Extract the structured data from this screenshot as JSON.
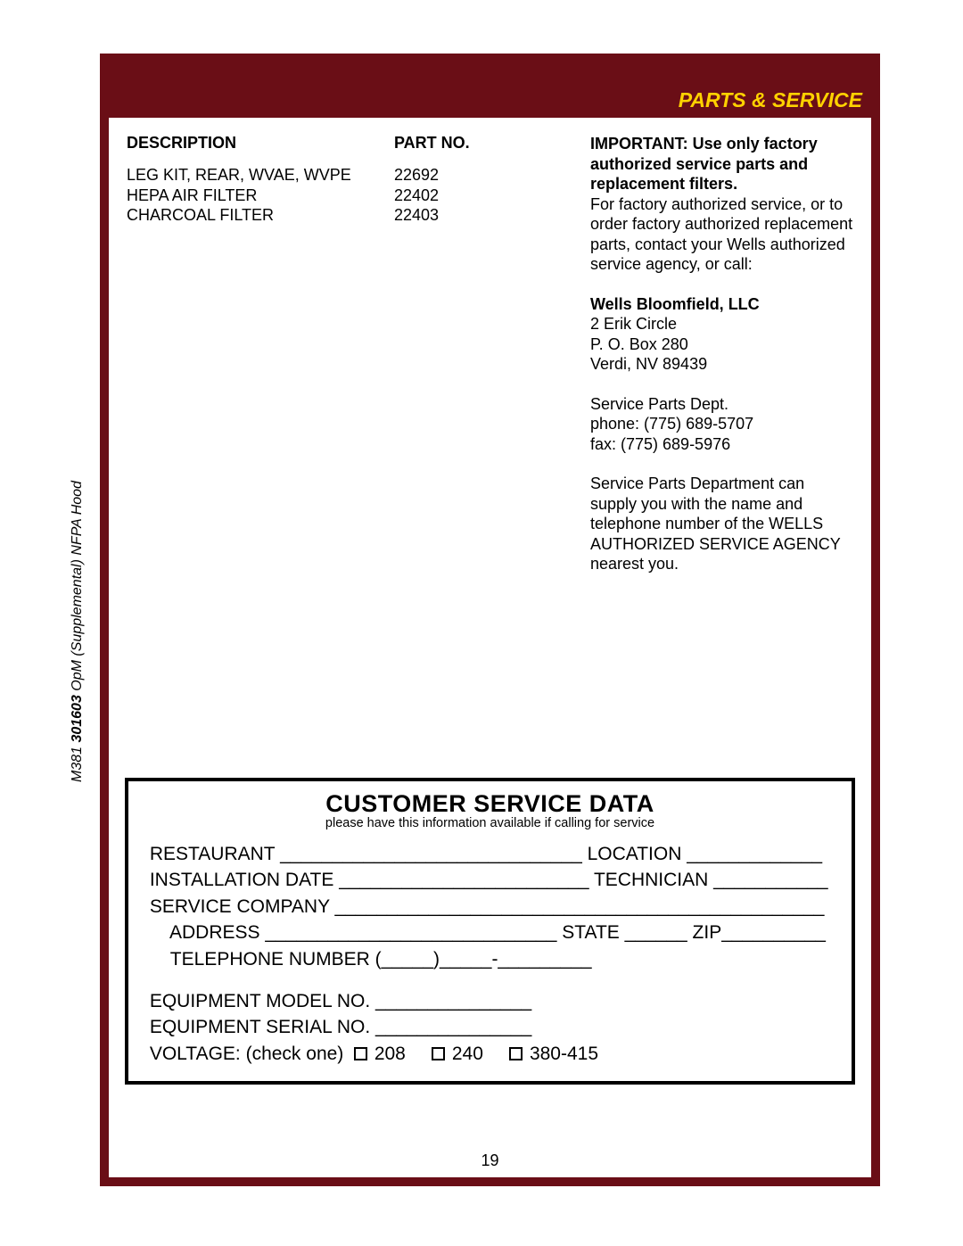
{
  "header": {
    "title": "PARTS & SERVICE"
  },
  "parts": {
    "headers": {
      "description": "DESCRIPTION",
      "partno": "PART NO."
    },
    "rows": [
      {
        "desc": "LEG KIT, REAR, WVAE, WVPE",
        "partno": "22692"
      },
      {
        "desc": "HEPA AIR FILTER",
        "partno": "22402"
      },
      {
        "desc": "CHARCOAL FILTER",
        "partno": "22403"
      }
    ]
  },
  "info": {
    "important": "IMPORTANT: Use only factory authorized service parts and replacement filters.",
    "para1": "For factory authorized service, or to order factory authorized replacement parts, contact your Wells authorized service agency, or call:",
    "company": "Wells Bloomfield, LLC",
    "addr1": "2 Erik Circle",
    "addr2": "P. O. Box 280",
    "addr3": "Verdi, NV  89439",
    "dept": "Service Parts Dept.",
    "phone": "phone:  (775) 689-5707",
    "fax": "fax:        (775) 689-5976",
    "para2": "Service Parts Department can supply you with the name and telephone number of the WELLS  AUTHORIZED SERVICE AGENCY  nearest you."
  },
  "csd": {
    "title": "CUSTOMER SERVICE DATA",
    "sub": "please have this information available if calling for service",
    "line1": " RESTAURANT _____________________________ LOCATION _____________",
    "line2": " INSTALLATION DATE ________________________ TECHNICIAN ___________",
    "line3": " SERVICE COMPANY _______________________________________________",
    "line4": "     ADDRESS ____________________________ STATE ______ ZIP__________",
    "line5": "     TELEPHONE NUMBER (_____)_____-_________",
    "line6": " EQUIPMENT MODEL NO. _______________",
    "line7": " EQUIPMENT SERIAL NO. _______________",
    "voltage_label": " VOLTAGE: (check one)  ",
    "v1": "208     ",
    "v2": "240     ",
    "v3": "380-415"
  },
  "page_number": "19",
  "side": {
    "prefix": "M381  ",
    "code": "301603",
    "suffix": " OpM (Supplemental) NFPA Hood"
  }
}
